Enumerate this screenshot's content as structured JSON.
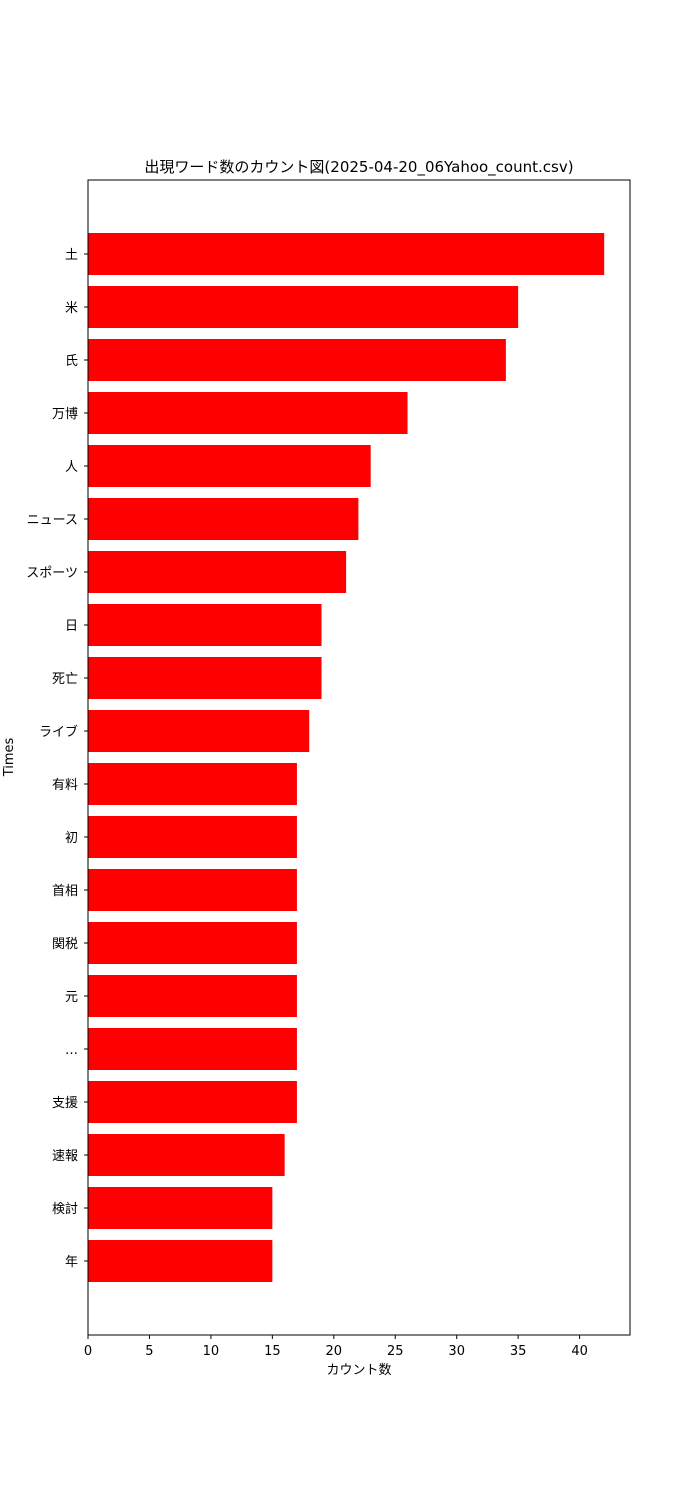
{
  "chart_data": {
    "type": "bar",
    "orientation": "horizontal",
    "title": "出現ワード数のカウント図(2025-04-20_06Yahoo_count.csv)",
    "xlabel": "カウント数",
    "ylabel": "Times",
    "xlim": [
      0,
      44.1
    ],
    "xticks": [
      0,
      5,
      10,
      15,
      20,
      25,
      30,
      35,
      40
    ],
    "grid": false,
    "bar_color": "#ff0000",
    "categories": [
      "土",
      "米",
      "氏",
      "万博",
      "人",
      "ニュース",
      "スポーツ",
      "日",
      "死亡",
      "ライブ",
      "有料",
      "初",
      "首相",
      "関税",
      "元",
      "…",
      "支援",
      "速報",
      "検討",
      "年"
    ],
    "values": [
      42,
      35,
      34,
      26,
      23,
      22,
      21,
      19,
      19,
      18,
      17,
      17,
      17,
      17,
      17,
      17,
      17,
      16,
      15,
      15
    ]
  }
}
